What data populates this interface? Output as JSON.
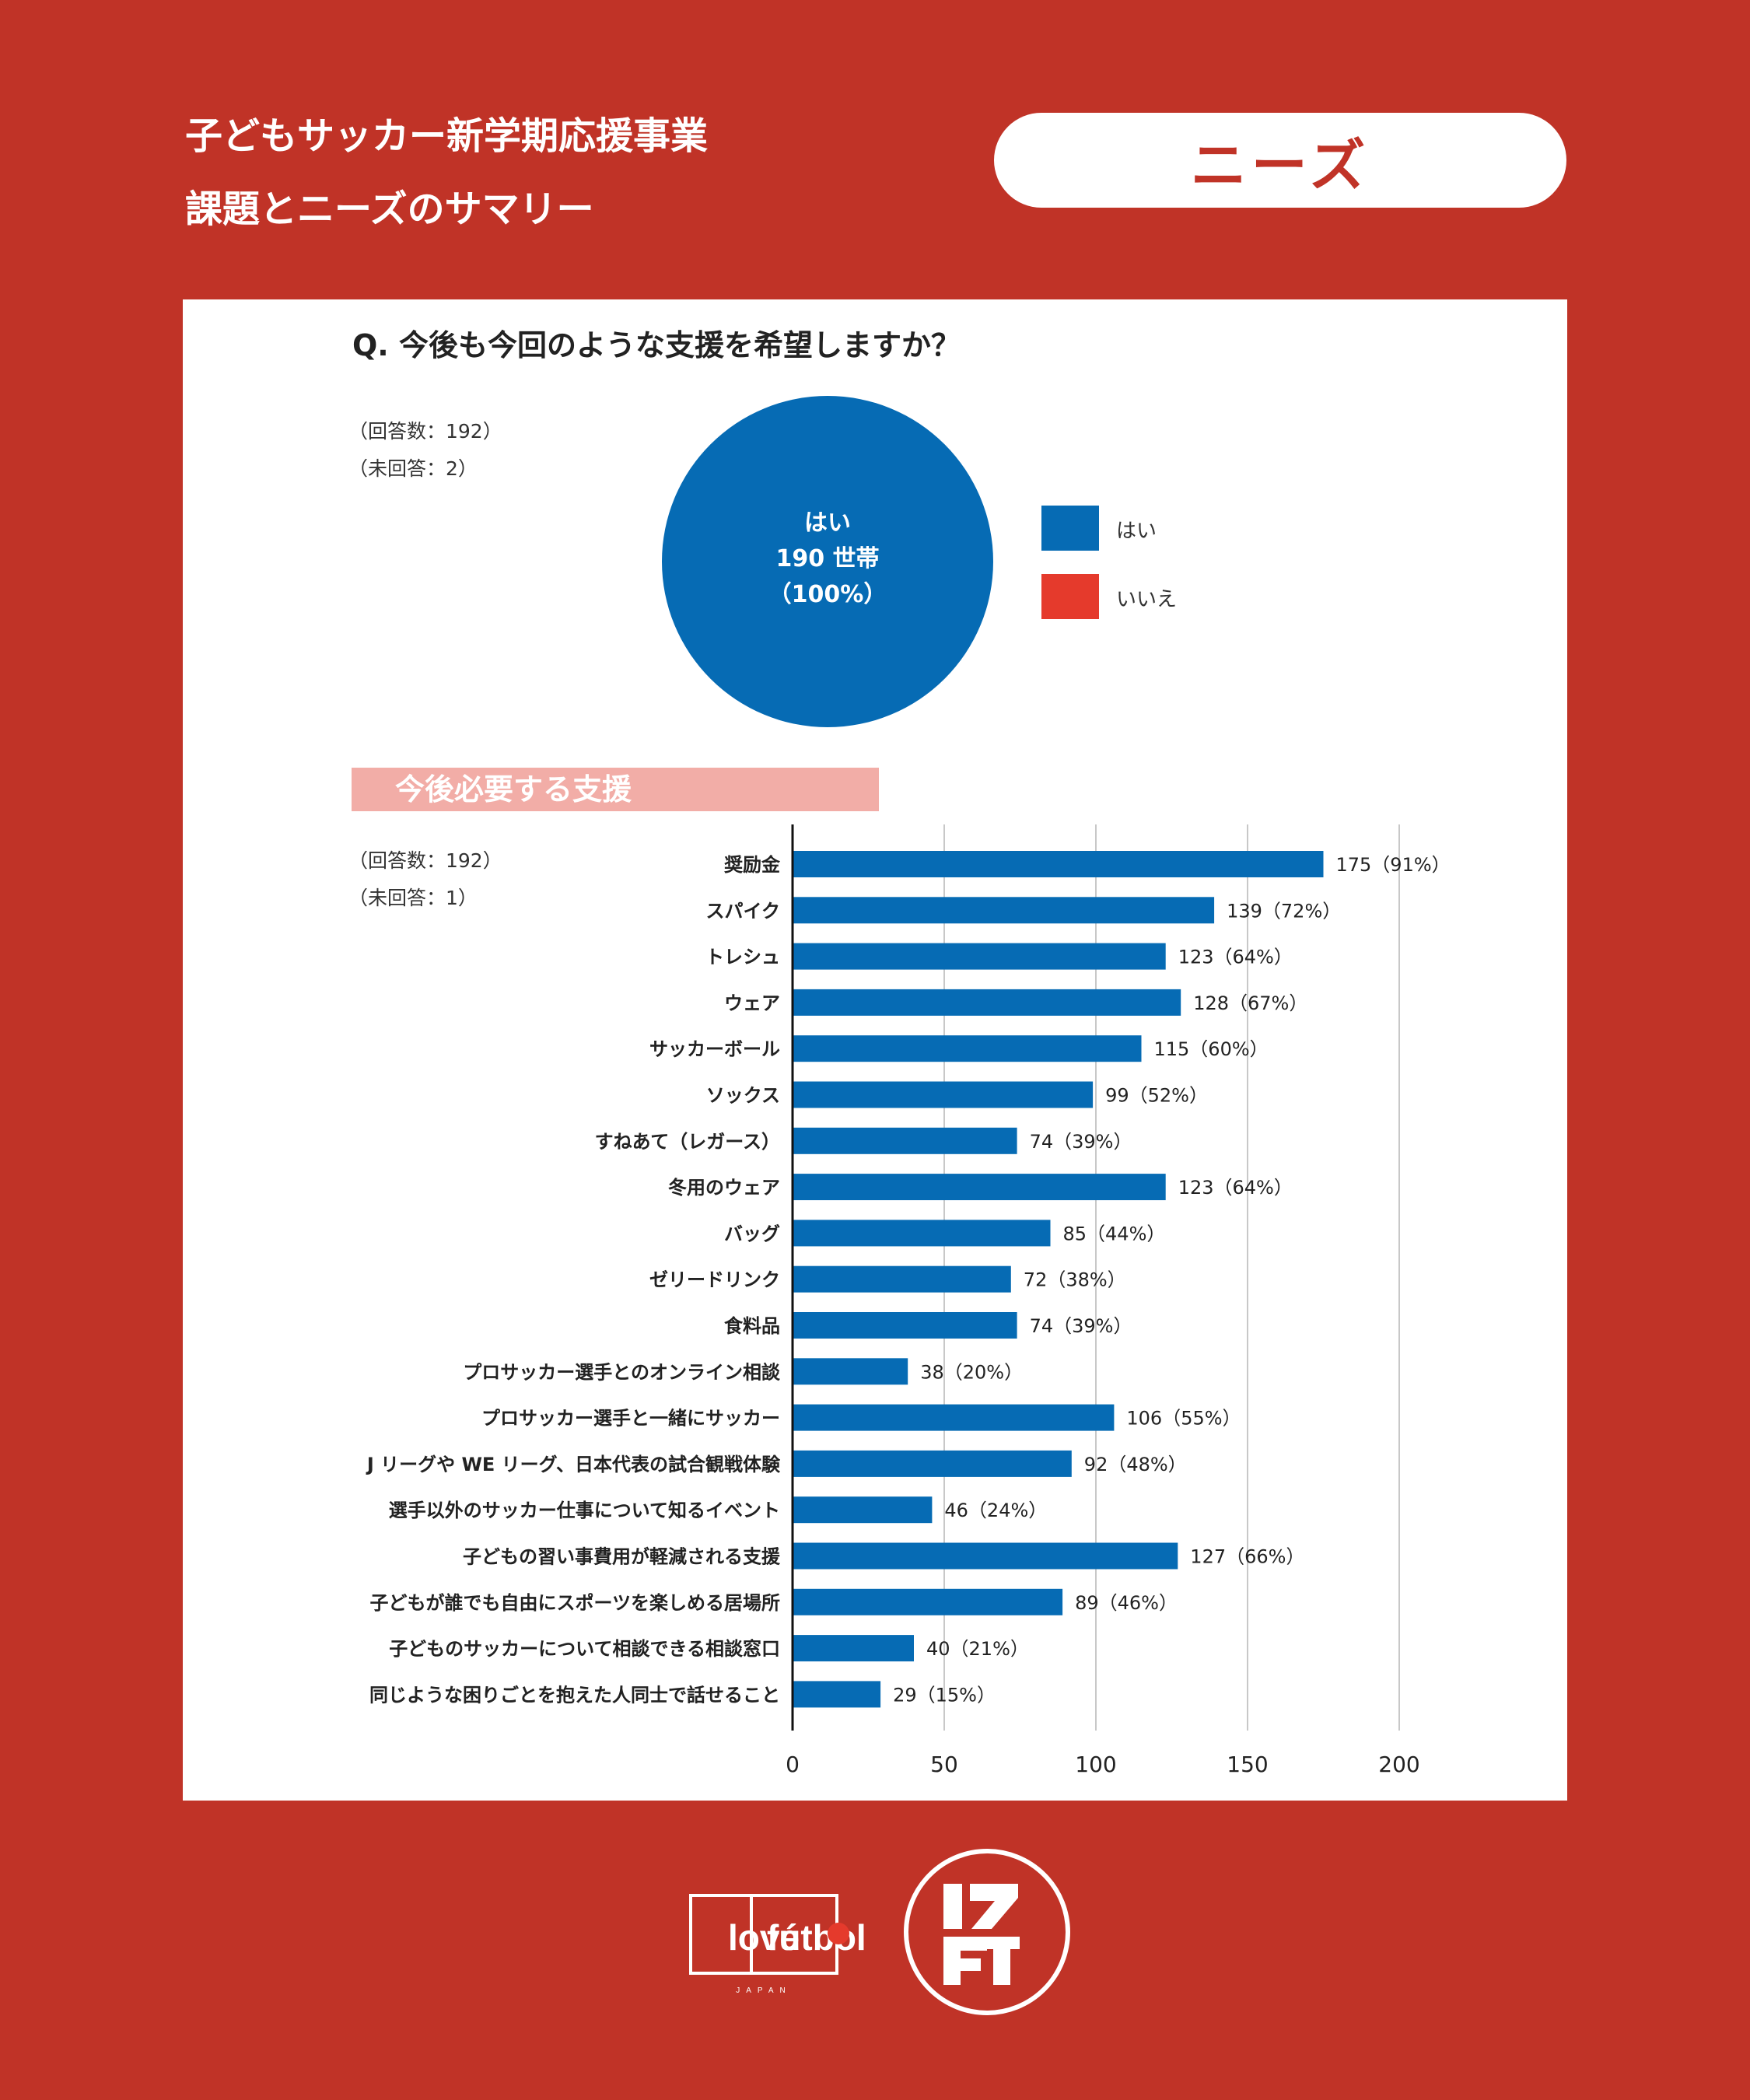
{
  "header": {
    "title_line1": "子どもサッカー新学期応援事業",
    "title_line2": "課題とニーズのサマリー",
    "badge": "ニーズ"
  },
  "colors": {
    "background": "#c03327",
    "panel": "#ffffff",
    "bar": "#066bb4",
    "yes": "#066bb4",
    "no": "#e53a2c",
    "section_band": "#f2ada7"
  },
  "question": {
    "text": "Q. 今後も今回のような支援を希望しますか？",
    "responses": "（回答数：192）",
    "no_answer": "（未回答：2）",
    "pie_label_line1": "はい",
    "pie_label_line2": "190 世帯",
    "pie_label_line3": "（100%）",
    "legend": [
      {
        "label": "はい",
        "color": "#066bb4"
      },
      {
        "label": "いいえ",
        "color": "#e53a2c"
      }
    ]
  },
  "support": {
    "section_title": "今後必要する支援",
    "responses": "（回答数：192）",
    "no_answer": "（未回答：1）"
  },
  "chart_data": [
    {
      "type": "pie",
      "slices": [
        {
          "label": "はい",
          "value": 190,
          "percent": 100
        },
        {
          "label": "いいえ",
          "value": 0,
          "percent": 0
        }
      ]
    },
    {
      "type": "bar",
      "orientation": "horizontal",
      "categories": [
        "奨励金",
        "スパイク",
        "トレシュ",
        "ウェア",
        "サッカーボール",
        "ソックス",
        "すねあて（レガース）",
        "冬用のウェア",
        "バッグ",
        "ゼリードリンク",
        "食料品",
        "プロサッカー選手とのオンライン相談",
        "プロサッカー選手と一緒にサッカー",
        "J リーグや WE リーグ、日本代表の試合観戦体験",
        "選手以外のサッカー仕事について知るイベント",
        "子どもの習い事費用が軽減される支援",
        "子どもが誰でも自由にスポーツを楽しめる居場所",
        "子どものサッカーについて相談できる相談窓口",
        "同じような困りごとを抱えた人同士で話せること"
      ],
      "values": [
        175,
        139,
        123,
        128,
        115,
        99,
        74,
        123,
        85,
        72,
        74,
        38,
        106,
        92,
        46,
        127,
        89,
        40,
        29
      ],
      "data_labels": [
        "175（91%）",
        "139（72%）",
        "123（64%）",
        "128（67%）",
        "115（60%）",
        "99（52%）",
        "74（39%）",
        "123（64%）",
        "85（44%）",
        "72（38%）",
        "74（39%）",
        "38（20%）",
        "106（55%）",
        "92（48%）",
        "46（24%）",
        "127（66%）",
        "89（46%）",
        "40（21%）",
        "29（15%）"
      ],
      "xlim": [
        0,
        200
      ],
      "xticks": [
        0,
        50,
        100,
        150,
        200
      ],
      "grid": true
    }
  ]
}
